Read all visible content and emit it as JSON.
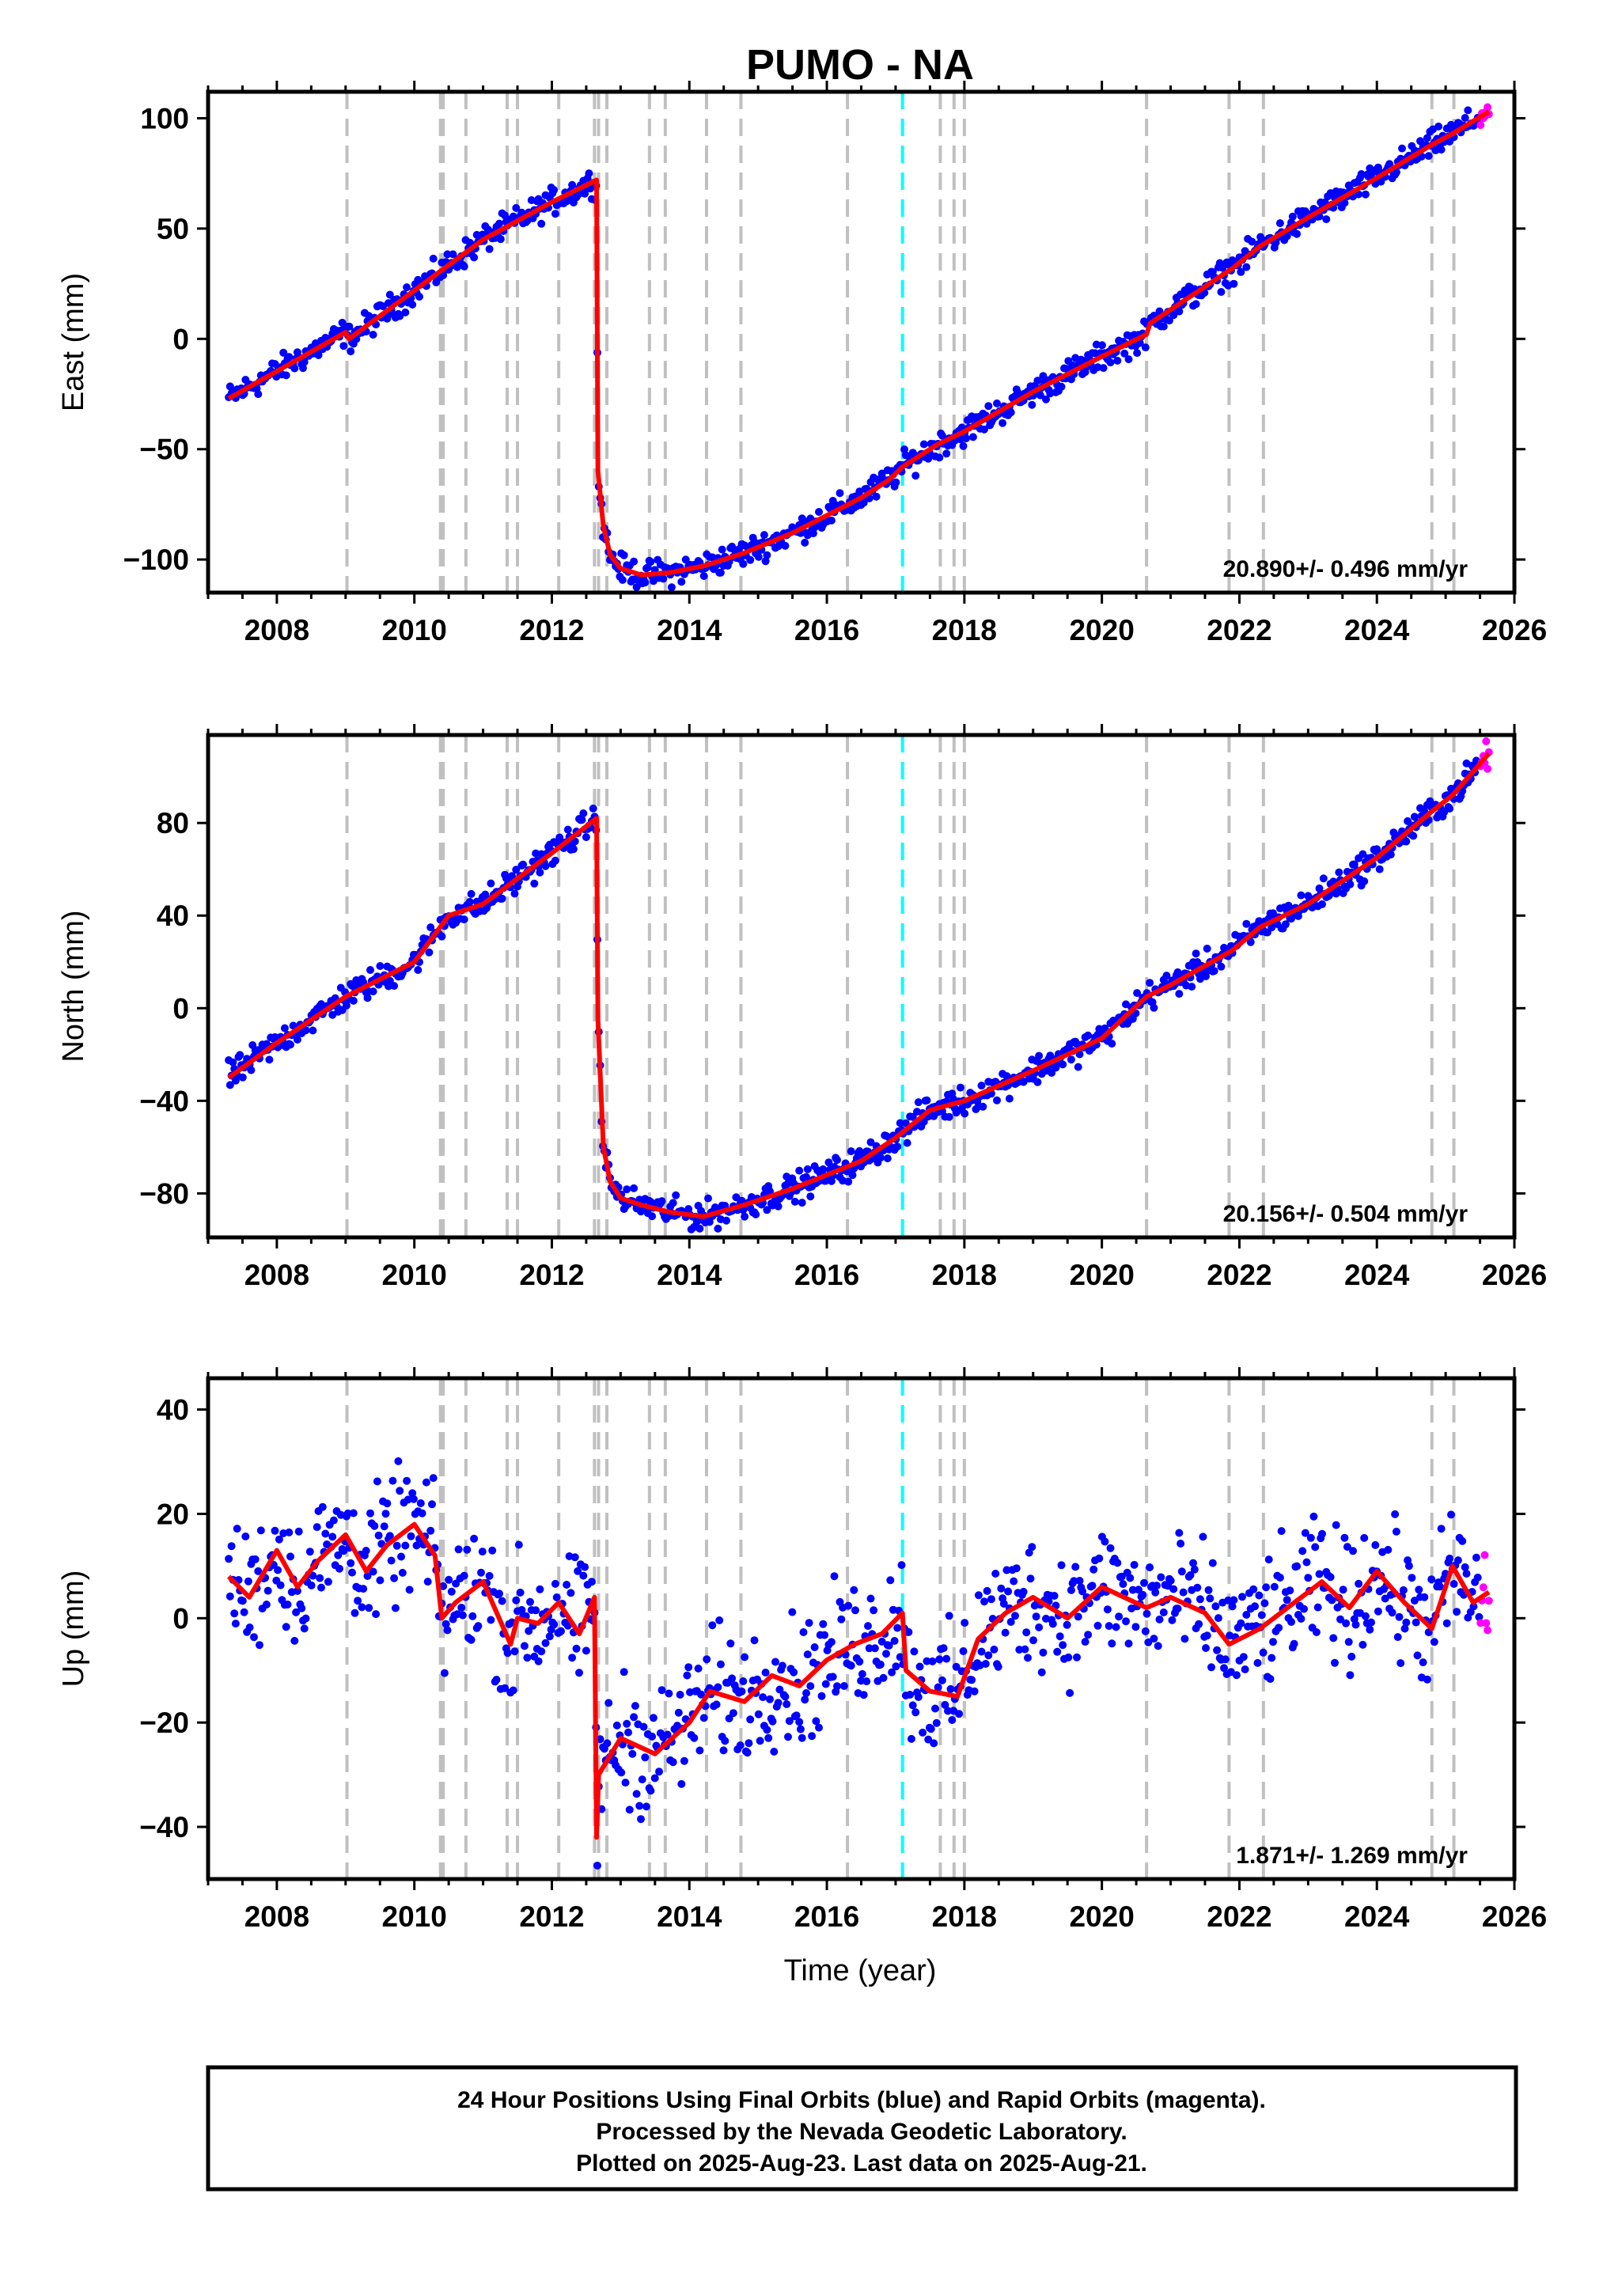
{
  "chart_data": [
    {
      "type": "scatter",
      "title": "PUMO - NA",
      "xlabel": "",
      "ylabel": "East (mm)",
      "xlim": [
        2007.0,
        2026.0
      ],
      "ylim": [
        -115,
        112
      ],
      "x_ticks": [
        "2008",
        "2010",
        "2012",
        "2014",
        "2016",
        "2018",
        "2020",
        "2022",
        "2024",
        "2026"
      ],
      "y_ticks": [
        "100",
        "50",
        "0",
        "−50",
        "−100"
      ],
      "rate_label": "20.890+/- 0.496 mm/yr",
      "grid": false,
      "series": [
        {
          "label": "final orbits",
          "color": "#0000ff"
        },
        {
          "label": "rapid orbits",
          "color": "#ff00ff"
        },
        {
          "label": "model",
          "color": "#ff0000"
        }
      ],
      "model_x": [
        2007.3,
        2009.0,
        2009.05,
        2011.0,
        2012.0,
        2012.65,
        2012.67,
        2012.75,
        2012.85,
        2013.0,
        2013.3,
        2013.7,
        2014.2,
        2014.8,
        2015.5,
        2016.0,
        2016.5,
        2016.9,
        2017.1,
        2017.6,
        2018.0,
        2019.0,
        2020.0,
        2020.65,
        2020.7,
        2021.9,
        2022.3,
        2023.0,
        2024.0,
        2024.8,
        2025.1,
        2025.63
      ],
      "model_y": [
        -27,
        3,
        0,
        45,
        62,
        72,
        -60,
        -85,
        -98,
        -104,
        -107,
        -106,
        -103,
        -97,
        -88,
        -80,
        -72,
        -64,
        -58,
        -48,
        -42,
        -24,
        -8,
        2,
        7,
        32,
        42,
        55,
        73,
        88,
        93,
        103
      ],
      "event_lines_gray": [
        2009.02,
        2010.38,
        2010.42,
        2010.75,
        2011.35,
        2011.5,
        2012.1,
        2012.62,
        2012.68,
        2012.8,
        2013.42,
        2013.65,
        2014.25,
        2014.75,
        2016.3,
        2017.65,
        2017.85,
        2018.0,
        2020.65,
        2021.85,
        2022.35,
        2024.8,
        2025.12
      ],
      "event_lines_cyan": [
        2017.1
      ]
    },
    {
      "type": "scatter",
      "title": "",
      "xlabel": "",
      "ylabel": "North (mm)",
      "xlim": [
        2007.0,
        2026.0
      ],
      "ylim": [
        -99,
        118
      ],
      "x_ticks": [
        "2008",
        "2010",
        "2012",
        "2014",
        "2016",
        "2018",
        "2020",
        "2022",
        "2024",
        "2026"
      ],
      "y_ticks": [
        "80",
        "40",
        "0",
        "−40",
        "−80"
      ],
      "rate_label": "20.156+/- 0.504 mm/yr",
      "grid": false,
      "series": [
        {
          "label": "final orbits",
          "color": "#0000ff"
        },
        {
          "label": "rapid orbits",
          "color": "#ff00ff"
        },
        {
          "label": "model",
          "color": "#ff0000"
        }
      ],
      "model_x": [
        2007.3,
        2008.0,
        2009.0,
        2010.0,
        2010.5,
        2011.0,
        2012.0,
        2012.65,
        2012.67,
        2012.75,
        2012.85,
        2013.0,
        2013.3,
        2013.7,
        2014.2,
        2014.8,
        2015.5,
        2016.0,
        2016.5,
        2017.0,
        2017.5,
        2018.0,
        2019.0,
        2020.0,
        2020.65,
        2021.0,
        2021.9,
        2022.3,
        2023.0,
        2024.0,
        2024.8,
        2025.1,
        2025.63
      ],
      "model_y": [
        -30,
        -15,
        5,
        20,
        40,
        45,
        67,
        82,
        -5,
        -60,
        -75,
        -82,
        -85,
        -88,
        -90,
        -85,
        -78,
        -72,
        -66,
        -56,
        -44,
        -40,
        -27,
        -13,
        5,
        10,
        25,
        35,
        45,
        65,
        85,
        92,
        110
      ],
      "event_lines_gray": [
        2009.02,
        2010.38,
        2010.42,
        2010.75,
        2011.35,
        2011.5,
        2012.1,
        2012.62,
        2012.68,
        2012.8,
        2013.42,
        2013.65,
        2014.25,
        2014.75,
        2016.3,
        2017.65,
        2017.85,
        2018.0,
        2020.65,
        2021.85,
        2022.35,
        2024.8,
        2025.12
      ],
      "event_lines_cyan": [
        2017.1
      ]
    },
    {
      "type": "scatter",
      "title": "",
      "xlabel": "Time (year)",
      "ylabel": "Up (mm)",
      "xlim": [
        2007.0,
        2026.0
      ],
      "ylim": [
        -50,
        46
      ],
      "x_ticks": [
        "2008",
        "2010",
        "2012",
        "2014",
        "2016",
        "2018",
        "2020",
        "2022",
        "2024",
        "2026"
      ],
      "y_ticks": [
        "40",
        "20",
        "0",
        "−20",
        "−40"
      ],
      "rate_label": "1.871+/- 1.269 mm/yr",
      "grid": false,
      "series": [
        {
          "label": "final orbits",
          "color": "#0000ff"
        },
        {
          "label": "rapid orbits",
          "color": "#ff00ff"
        },
        {
          "label": "model",
          "color": "#ff0000"
        }
      ],
      "model_x": [
        2007.3,
        2007.6,
        2008.0,
        2008.3,
        2008.6,
        2009.0,
        2009.3,
        2009.6,
        2010.0,
        2010.3,
        2010.4,
        2010.6,
        2011.0,
        2011.4,
        2011.5,
        2011.8,
        2012.1,
        2012.4,
        2012.62,
        2012.65,
        2012.68,
        2013.0,
        2013.5,
        2014.0,
        2014.3,
        2014.8,
        2015.2,
        2015.6,
        2016.0,
        2016.4,
        2016.8,
        2017.1,
        2017.15,
        2017.5,
        2017.9,
        2018.2,
        2018.6,
        2019.0,
        2019.5,
        2020.0,
        2020.65,
        2021.0,
        2021.5,
        2021.85,
        2022.3,
        2022.8,
        2023.2,
        2023.6,
        2024.0,
        2024.4,
        2024.8,
        2025.1,
        2025.4,
        2025.63
      ],
      "model_y": [
        8,
        4,
        13,
        6,
        11,
        16,
        9,
        14,
        18,
        12,
        0,
        3,
        7,
        -5,
        0,
        -1,
        3,
        -3,
        4,
        -42,
        -30,
        -23,
        -26,
        -20,
        -14,
        -16,
        -11,
        -13,
        -8,
        -5,
        -3,
        1,
        -10,
        -14,
        -15,
        -4,
        1,
        4,
        0,
        6,
        2,
        4,
        1,
        -5,
        -2,
        3,
        7,
        2,
        9,
        3,
        -2,
        10,
        3,
        5
      ],
      "event_lines_gray": [
        2009.02,
        2010.38,
        2010.42,
        2010.75,
        2011.35,
        2011.5,
        2012.1,
        2012.62,
        2012.68,
        2012.8,
        2013.42,
        2013.65,
        2014.25,
        2014.75,
        2016.3,
        2017.65,
        2017.85,
        2018.0,
        2020.65,
        2021.85,
        2022.35,
        2024.8,
        2025.12
      ],
      "event_lines_cyan": [
        2017.1
      ]
    }
  ],
  "footer": {
    "line1": "24 Hour Positions Using Final Orbits (blue) and Rapid Orbits (magenta).",
    "line2": "Processed by the Nevada Geodetic Laboratory.",
    "line3": "Plotted on 2025-Aug-23. Last data on 2025-Aug-21."
  }
}
